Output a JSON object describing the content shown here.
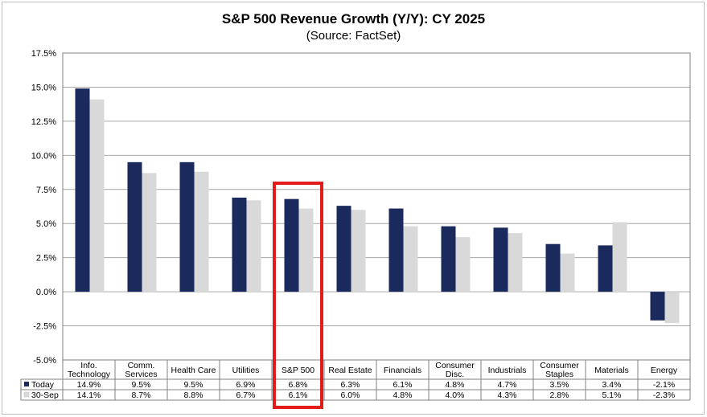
{
  "chart_data": {
    "type": "bar",
    "title": "S&P 500 Revenue Growth (Y/Y):  CY 2025",
    "subtitle": "(Source: FactSet)",
    "categories": [
      [
        "Info.",
        "Technology"
      ],
      [
        "Comm.",
        "Services"
      ],
      [
        "Health Care"
      ],
      [
        "Utilities"
      ],
      [
        "S&P 500"
      ],
      [
        "Real Estate"
      ],
      [
        "Financials"
      ],
      [
        "Consumer",
        "Disc."
      ],
      [
        "Industrials"
      ],
      [
        "Consumer",
        "Staples"
      ],
      [
        "Materials"
      ],
      [
        "Energy"
      ]
    ],
    "series": [
      {
        "name": "Today",
        "color": "#1b2a5c",
        "values": [
          14.9,
          9.5,
          9.5,
          6.9,
          6.8,
          6.3,
          6.1,
          4.8,
          4.7,
          3.5,
          3.4,
          -2.1
        ],
        "labels": [
          "14.9%",
          "9.5%",
          "9.5%",
          "6.9%",
          "6.8%",
          "6.3%",
          "6.1%",
          "4.8%",
          "4.7%",
          "3.5%",
          "3.4%",
          "-2.1%"
        ]
      },
      {
        "name": "30-Sep",
        "color": "#d9d9d9",
        "values": [
          14.1,
          8.7,
          8.8,
          6.7,
          6.1,
          6.0,
          4.8,
          4.0,
          4.3,
          2.8,
          5.1,
          -2.3
        ],
        "labels": [
          "14.1%",
          "8.7%",
          "8.8%",
          "6.7%",
          "6.1%",
          "6.0%",
          "4.8%",
          "4.0%",
          "4.3%",
          "2.8%",
          "5.1%",
          "-2.3%"
        ]
      }
    ],
    "ylim": [
      -5.0,
      17.5
    ],
    "yticks": [
      "17.5%",
      "15.0%",
      "12.5%",
      "10.0%",
      "7.5%",
      "5.0%",
      "2.5%",
      "0.0%",
      "-2.5%",
      "-5.0%"
    ],
    "ytick_values": [
      17.5,
      15.0,
      12.5,
      10.0,
      7.5,
      5.0,
      2.5,
      0.0,
      -2.5,
      -5.0
    ],
    "grid": true,
    "legend": "data-table",
    "highlight_category": "S&P 500",
    "highlight_color": "#e31b1b"
  }
}
